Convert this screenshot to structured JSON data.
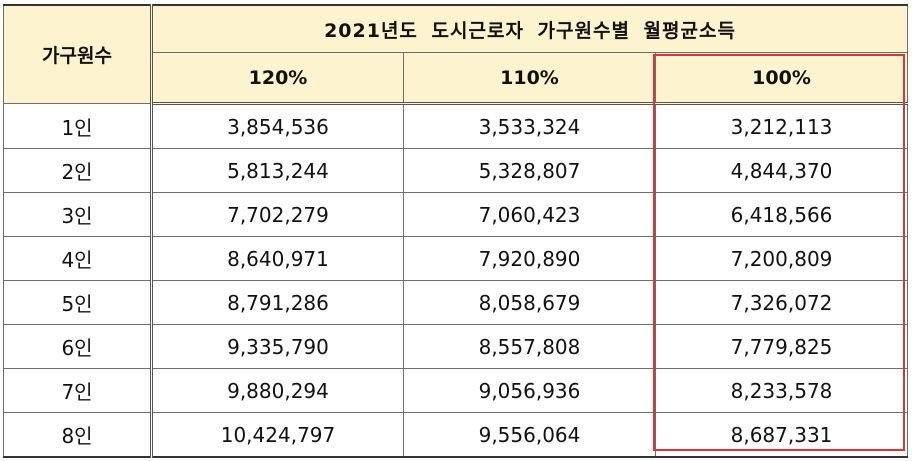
{
  "table": {
    "row_header": "가구원수",
    "group_title": "2021년도 도시근로자 가구원수별 월평균소득",
    "columns": [
      "120%",
      "110%",
      "100%"
    ],
    "rows": [
      {
        "label": "1인",
        "values": [
          "3,854,536",
          "3,533,324",
          "3,212,113"
        ]
      },
      {
        "label": "2인",
        "values": [
          "5,813,244",
          "5,328,807",
          "4,844,370"
        ]
      },
      {
        "label": "3인",
        "values": [
          "7,702,279",
          "7,060,423",
          "6,418,566"
        ]
      },
      {
        "label": "4인",
        "values": [
          "8,640,971",
          "7,920,890",
          "7,200,809"
        ]
      },
      {
        "label": "5인",
        "values": [
          "8,791,286",
          "8,058,679",
          "7,326,072"
        ]
      },
      {
        "label": "6인",
        "values": [
          "9,335,790",
          "8,557,808",
          "7,779,825"
        ]
      },
      {
        "label": "7인",
        "values": [
          "9,880,294",
          "9,056,936",
          "8,233,578"
        ]
      },
      {
        "label": "8인",
        "values": [
          "10,424,797",
          "9,556,064",
          "8,687,331"
        ]
      }
    ]
  },
  "colors": {
    "header_bg": "#fdf3cf",
    "highlight_border": "#e0323a"
  }
}
